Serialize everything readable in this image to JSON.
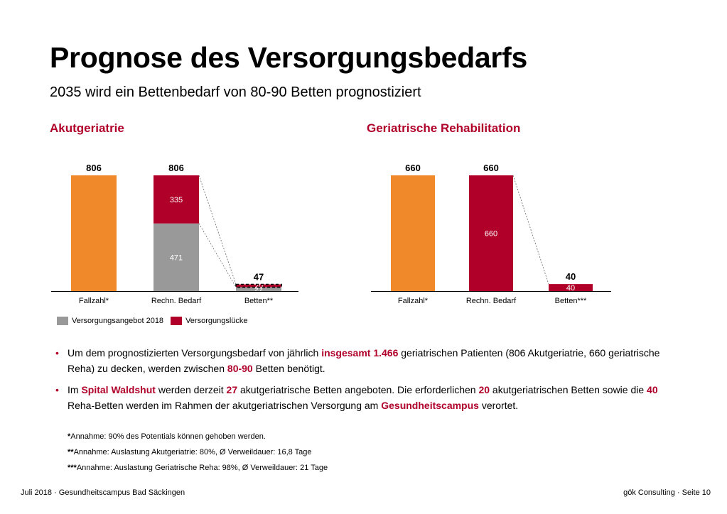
{
  "title": "Prognose des Versorgungsbedarfs",
  "subtitle": "2035 wird ein Bettenbedarf von 80-90 Betten prognostiziert",
  "colors": {
    "orange": "#f0892a",
    "red": "#b0002a",
    "gray": "#999999",
    "accent": "#b0002a"
  },
  "legend": {
    "supply": "Versorgungsangebot 2018",
    "gap": "Versorgungslücke"
  },
  "chart_data": [
    {
      "type": "bar",
      "stacked": true,
      "title": "Akutgeriatrie",
      "categories": [
        "Fallzahl*",
        "Rechn. Bedarf",
        "Betten**"
      ],
      "totals": [
        "806",
        "806",
        "47"
      ],
      "series": [
        {
          "name": "",
          "values": [
            806,
            0,
            0
          ],
          "labels": [
            "",
            "",
            ""
          ]
        },
        {
          "name": "Versorgungsangebot 2018",
          "values": [
            0,
            471,
            27
          ],
          "labels": [
            "",
            "471",
            "27"
          ]
        },
        {
          "name": "Versorgungslücke",
          "values": [
            0,
            335,
            20
          ],
          "labels": [
            "",
            "335",
            "20"
          ]
        }
      ],
      "scale_max": 806,
      "note": "Betten** gap segment highlighted with dashed border; dashed connector lines between bars"
    },
    {
      "type": "bar",
      "stacked": true,
      "title": "Geriatrische Rehabilitation",
      "categories": [
        "Fallzahl*",
        "Rechn. Bedarf",
        "Betten***"
      ],
      "totals": [
        "660",
        "660",
        "40"
      ],
      "series": [
        {
          "name": "",
          "values": [
            660,
            0,
            0
          ],
          "labels": [
            "",
            "",
            ""
          ]
        },
        {
          "name": "Versorgungslücke",
          "values": [
            0,
            660,
            40
          ],
          "labels": [
            "",
            "660",
            "40"
          ]
        }
      ],
      "scale_max": 660
    }
  ],
  "bullets": [
    [
      {
        "t": "Um dem prognostizierten Versorgungsbedarf von jährlich "
      },
      {
        "t": "insgesamt 1.466",
        "hl": true
      },
      {
        "t": " geriatrischen Patienten (806 Akutgeriatrie, 660 geriatrische Reha) zu decken, werden zwischen "
      },
      {
        "t": "80-90",
        "hl": true
      },
      {
        "t": " Betten benötigt."
      }
    ],
    [
      {
        "t": "Im "
      },
      {
        "t": "Spital Waldshut",
        "hl": true
      },
      {
        "t": " werden derzeit "
      },
      {
        "t": "27",
        "hl": true
      },
      {
        "t": " akutgeriatrische Betten angeboten. Die erforderlichen "
      },
      {
        "t": "20",
        "hl": true
      },
      {
        "t": " akutgeriatrischen Betten sowie die "
      },
      {
        "t": "40",
        "hl": true
      },
      {
        "t": " Reha-Betten werden im Rahmen der akutgeriatrischen Versorgung am "
      },
      {
        "t": "Gesundheitscampus",
        "hl": true
      },
      {
        "t": " verortet."
      }
    ]
  ],
  "notes": [
    {
      "mark": "*",
      "text": "Annahme: 90% des Potentials können gehoben werden."
    },
    {
      "mark": "**",
      "text": "Annahme: Auslastung Akutgeriatrie: 80%, Ø Verweildauer: 16,8 Tage"
    },
    {
      "mark": "***",
      "text": "Annahme: Auslastung Geriatrische Reha: 98%, Ø Verweildauer: 21 Tage"
    }
  ],
  "footer": {
    "left": "Juli 2018 · Gesundheitscampus Bad Säckingen",
    "right": "gök Consulting · Seite 10"
  }
}
